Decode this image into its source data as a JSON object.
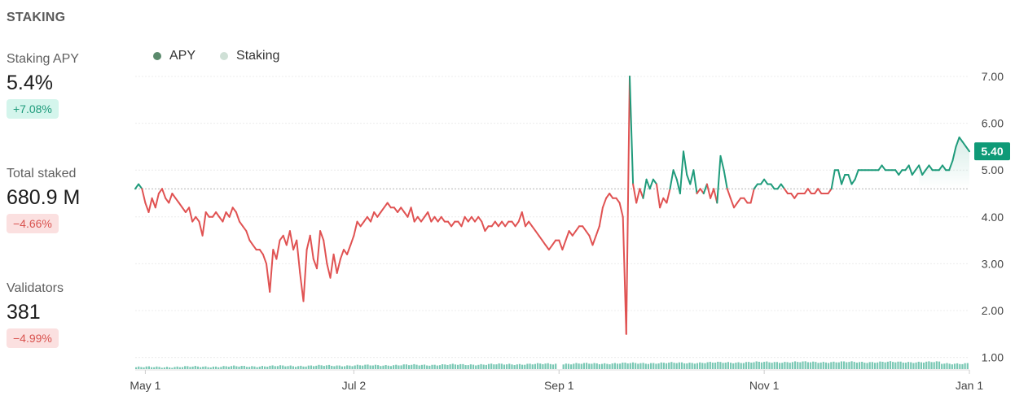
{
  "header": {
    "title": "STAKING"
  },
  "stats": [
    {
      "label": "Staking APY",
      "value": "5.4%",
      "change": "+7.08%",
      "direction": "up"
    },
    {
      "label": "Total staked",
      "value": "680.9 M",
      "change": "−4.66%",
      "direction": "down"
    },
    {
      "label": "Validators",
      "value": "381",
      "change": "−4.99%",
      "direction": "down"
    }
  ],
  "colors": {
    "up_line": "#1f9b7b",
    "down_line": "#e05252",
    "volume_bar": "#79c8b4",
    "apy_dot": "#5b8a6c",
    "staking_dot": "#cfe0d6",
    "price_tag": "#0f9a77"
  },
  "chart_data": {
    "type": "line",
    "legend": [
      "APY",
      "Staking"
    ],
    "legend_placement": "top-left",
    "x_tick_labels": [
      "May 1",
      "Jul 2",
      "Sep 1",
      "Nov 1",
      "Jan 1"
    ],
    "x_ticks_day": [
      0,
      62,
      123,
      184,
      245
    ],
    "y_tick_labels": [
      "1.00",
      "2.00",
      "3.00",
      "4.00",
      "5.00",
      "6.00",
      "7.00"
    ],
    "ylim": [
      0.75,
      7.0
    ],
    "baseline": 4.6,
    "last_value_label": "5.40",
    "grid": true,
    "series": [
      {
        "name": "APY",
        "points": [
          [
            -3,
            4.6
          ],
          [
            -2,
            4.7
          ],
          [
            -1,
            4.6
          ],
          [
            0,
            4.3
          ],
          [
            1,
            4.1
          ],
          [
            2,
            4.4
          ],
          [
            3,
            4.2
          ],
          [
            4,
            4.5
          ],
          [
            5,
            4.6
          ],
          [
            6,
            4.4
          ],
          [
            7,
            4.3
          ],
          [
            8,
            4.5
          ],
          [
            9,
            4.4
          ],
          [
            10,
            4.3
          ],
          [
            11,
            4.2
          ],
          [
            12,
            4.1
          ],
          [
            13,
            4.2
          ],
          [
            14,
            3.9
          ],
          [
            15,
            4.0
          ],
          [
            16,
            3.9
          ],
          [
            17,
            3.6
          ],
          [
            18,
            4.1
          ],
          [
            19,
            4.0
          ],
          [
            20,
            4.0
          ],
          [
            21,
            4.1
          ],
          [
            22,
            4.0
          ],
          [
            23,
            3.9
          ],
          [
            24,
            4.1
          ],
          [
            25,
            4.0
          ],
          [
            26,
            4.2
          ],
          [
            27,
            4.1
          ],
          [
            28,
            3.9
          ],
          [
            29,
            3.8
          ],
          [
            30,
            3.7
          ],
          [
            31,
            3.5
          ],
          [
            32,
            3.4
          ],
          [
            33,
            3.3
          ],
          [
            34,
            3.3
          ],
          [
            35,
            3.2
          ],
          [
            36,
            3.0
          ],
          [
            37,
            2.4
          ],
          [
            38,
            3.3
          ],
          [
            39,
            3.1
          ],
          [
            40,
            3.5
          ],
          [
            41,
            3.6
          ],
          [
            42,
            3.4
          ],
          [
            43,
            3.7
          ],
          [
            44,
            3.3
          ],
          [
            45,
            3.5
          ],
          [
            46,
            2.8
          ],
          [
            47,
            2.2
          ],
          [
            48,
            3.3
          ],
          [
            49,
            3.6
          ],
          [
            50,
            3.1
          ],
          [
            51,
            2.9
          ],
          [
            52,
            3.7
          ],
          [
            53,
            3.5
          ],
          [
            54,
            3.0
          ],
          [
            55,
            2.7
          ],
          [
            56,
            3.2
          ],
          [
            57,
            2.8
          ],
          [
            58,
            3.1
          ],
          [
            59,
            3.3
          ],
          [
            60,
            3.2
          ],
          [
            61,
            3.4
          ],
          [
            62,
            3.6
          ],
          [
            63,
            3.9
          ],
          [
            64,
            3.8
          ],
          [
            65,
            3.9
          ],
          [
            66,
            4.0
          ],
          [
            67,
            3.9
          ],
          [
            68,
            4.1
          ],
          [
            69,
            4.0
          ],
          [
            70,
            4.1
          ],
          [
            71,
            4.2
          ],
          [
            72,
            4.3
          ],
          [
            73,
            4.2
          ],
          [
            74,
            4.2
          ],
          [
            75,
            4.1
          ],
          [
            76,
            4.2
          ],
          [
            77,
            4.1
          ],
          [
            78,
            4.0
          ],
          [
            79,
            4.2
          ],
          [
            80,
            3.9
          ],
          [
            81,
            4.0
          ],
          [
            82,
            3.9
          ],
          [
            83,
            4.0
          ],
          [
            84,
            4.1
          ],
          [
            85,
            3.9
          ],
          [
            86,
            4.0
          ],
          [
            87,
            3.9
          ],
          [
            88,
            4.0
          ],
          [
            89,
            3.9
          ],
          [
            90,
            3.9
          ],
          [
            91,
            3.8
          ],
          [
            92,
            3.9
          ],
          [
            93,
            3.9
          ],
          [
            94,
            3.8
          ],
          [
            95,
            4.0
          ],
          [
            96,
            3.9
          ],
          [
            97,
            4.0
          ],
          [
            98,
            3.9
          ],
          [
            99,
            4.0
          ],
          [
            100,
            3.9
          ],
          [
            101,
            3.7
          ],
          [
            102,
            3.8
          ],
          [
            103,
            3.8
          ],
          [
            104,
            3.9
          ],
          [
            105,
            3.8
          ],
          [
            106,
            3.9
          ],
          [
            107,
            3.8
          ],
          [
            108,
            3.9
          ],
          [
            109,
            3.9
          ],
          [
            110,
            3.8
          ],
          [
            111,
            3.9
          ],
          [
            112,
            4.1
          ],
          [
            113,
            3.8
          ],
          [
            114,
            3.9
          ],
          [
            115,
            3.8
          ],
          [
            116,
            3.7
          ],
          [
            117,
            3.6
          ],
          [
            118,
            3.5
          ],
          [
            119,
            3.4
          ],
          [
            120,
            3.3
          ],
          [
            121,
            3.4
          ],
          [
            122,
            3.5
          ],
          [
            123,
            3.5
          ],
          [
            124,
            3.3
          ],
          [
            125,
            3.5
          ],
          [
            126,
            3.7
          ],
          [
            127,
            3.6
          ],
          [
            128,
            3.7
          ],
          [
            129,
            3.8
          ],
          [
            130,
            3.8
          ],
          [
            131,
            3.7
          ],
          [
            132,
            3.6
          ],
          [
            133,
            3.4
          ],
          [
            134,
            3.6
          ],
          [
            135,
            3.8
          ],
          [
            136,
            4.2
          ],
          [
            137,
            4.4
          ],
          [
            138,
            4.5
          ],
          [
            139,
            4.4
          ],
          [
            140,
            4.4
          ],
          [
            141,
            4.3
          ],
          [
            142,
            4.0
          ],
          [
            143,
            1.5
          ],
          [
            144,
            7.0
          ],
          [
            145,
            4.7
          ],
          [
            146,
            4.3
          ],
          [
            147,
            4.6
          ],
          [
            148,
            4.4
          ],
          [
            149,
            4.8
          ],
          [
            150,
            4.6
          ],
          [
            151,
            4.8
          ],
          [
            152,
            4.7
          ],
          [
            153,
            4.2
          ],
          [
            154,
            4.4
          ],
          [
            155,
            4.3
          ],
          [
            156,
            4.6
          ],
          [
            157,
            5.0
          ],
          [
            158,
            4.8
          ],
          [
            159,
            4.5
          ],
          [
            160,
            5.4
          ],
          [
            161,
            4.9
          ],
          [
            162,
            4.7
          ],
          [
            163,
            5.0
          ],
          [
            164,
            4.5
          ],
          [
            165,
            4.6
          ],
          [
            166,
            4.5
          ],
          [
            167,
            4.7
          ],
          [
            168,
            4.4
          ],
          [
            169,
            4.6
          ],
          [
            170,
            4.3
          ],
          [
            171,
            5.3
          ],
          [
            172,
            5.0
          ],
          [
            173,
            4.6
          ],
          [
            174,
            4.4
          ],
          [
            175,
            4.2
          ],
          [
            176,
            4.3
          ],
          [
            177,
            4.4
          ],
          [
            178,
            4.4
          ],
          [
            179,
            4.3
          ],
          [
            180,
            4.3
          ],
          [
            181,
            4.6
          ],
          [
            182,
            4.7
          ],
          [
            183,
            4.7
          ],
          [
            184,
            4.8
          ],
          [
            185,
            4.7
          ],
          [
            186,
            4.7
          ],
          [
            187,
            4.6
          ],
          [
            188,
            4.6
          ],
          [
            189,
            4.7
          ],
          [
            190,
            4.6
          ],
          [
            191,
            4.5
          ],
          [
            192,
            4.5
          ],
          [
            193,
            4.4
          ],
          [
            194,
            4.5
          ],
          [
            195,
            4.5
          ],
          [
            196,
            4.5
          ],
          [
            197,
            4.6
          ],
          [
            198,
            4.5
          ],
          [
            199,
            4.5
          ],
          [
            200,
            4.6
          ],
          [
            201,
            4.5
          ],
          [
            202,
            4.5
          ],
          [
            203,
            4.5
          ],
          [
            204,
            4.6
          ],
          [
            205,
            5.0
          ],
          [
            206,
            5.0
          ],
          [
            207,
            4.7
          ],
          [
            208,
            4.9
          ],
          [
            209,
            4.9
          ],
          [
            210,
            4.7
          ],
          [
            211,
            4.8
          ],
          [
            212,
            5.0
          ],
          [
            213,
            5.0
          ],
          [
            214,
            5.0
          ],
          [
            215,
            5.0
          ],
          [
            216,
            5.0
          ],
          [
            217,
            5.0
          ],
          [
            218,
            5.0
          ],
          [
            219,
            5.1
          ],
          [
            220,
            5.0
          ],
          [
            221,
            5.0
          ],
          [
            222,
            5.0
          ],
          [
            223,
            5.0
          ],
          [
            224,
            4.9
          ],
          [
            225,
            5.0
          ],
          [
            226,
            5.0
          ],
          [
            227,
            5.1
          ],
          [
            228,
            4.9
          ],
          [
            229,
            5.0
          ],
          [
            230,
            5.1
          ],
          [
            231,
            4.9
          ],
          [
            232,
            5.0
          ],
          [
            233,
            5.1
          ],
          [
            234,
            5.0
          ],
          [
            235,
            5.0
          ],
          [
            236,
            5.0
          ],
          [
            237,
            5.1
          ],
          [
            238,
            5.0
          ],
          [
            239,
            5.0
          ],
          [
            240,
            5.2
          ],
          [
            241,
            5.5
          ],
          [
            242,
            5.7
          ],
          [
            243,
            5.6
          ],
          [
            244,
            5.5
          ],
          [
            245,
            5.4
          ]
        ]
      },
      {
        "name": "Staking",
        "start_day": -3,
        "end_day": 245,
        "start_level": 0.79,
        "end_level": 0.9,
        "dip_day": 123,
        "dip_level": 0.65
      }
    ]
  }
}
